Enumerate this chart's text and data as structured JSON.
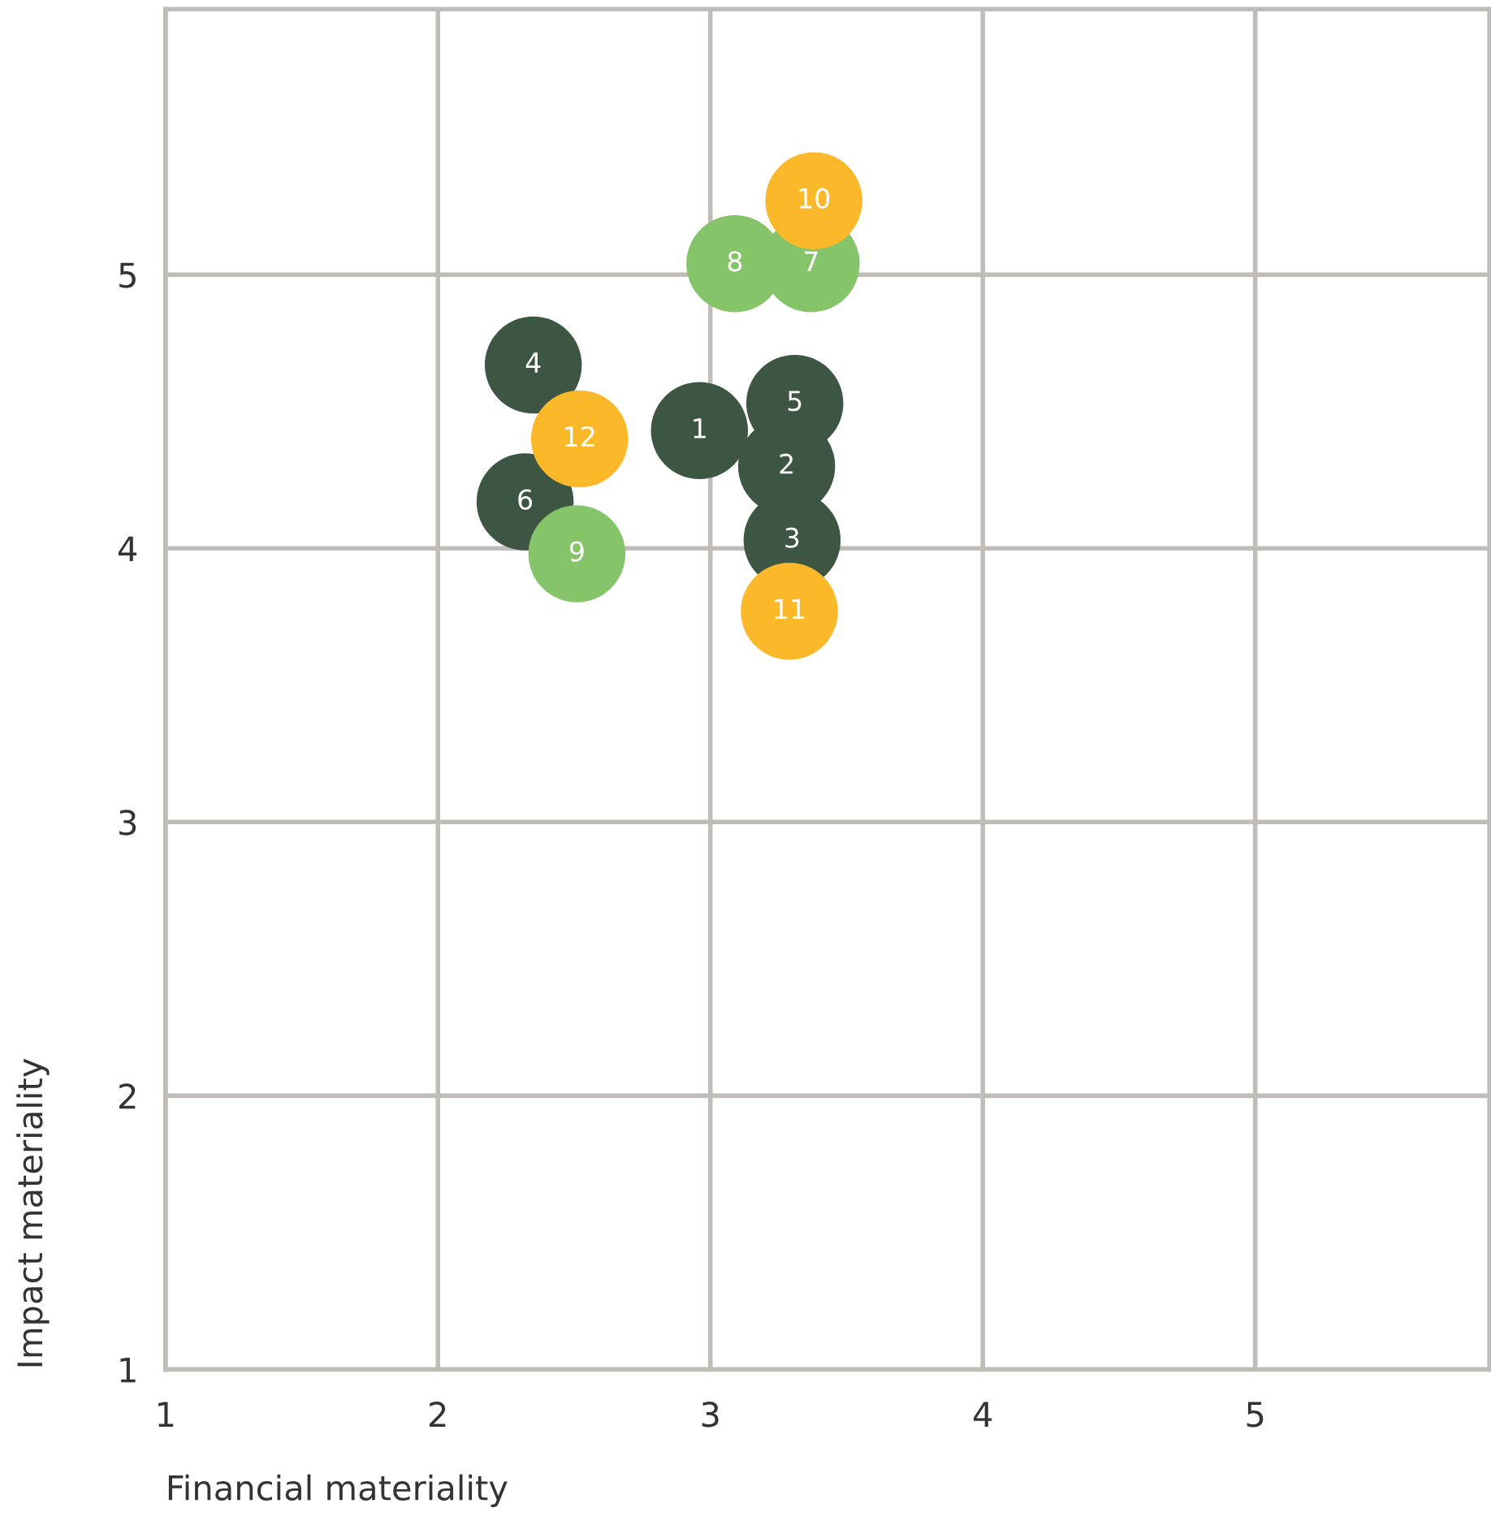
{
  "chart_data": {
    "type": "scatter",
    "xlabel": "Financial materiality",
    "ylabel": "Impact materiality",
    "xlim": [
      1,
      5.86
    ],
    "ylim": [
      1,
      5.97
    ],
    "xticks": [
      1,
      2,
      3,
      4,
      5
    ],
    "yticks": [
      1,
      2,
      3,
      4,
      5
    ],
    "grid": true,
    "marker": "circle",
    "legend": false,
    "series": [
      {
        "color": "#3d5643",
        "x": [
          2.96,
          3.28,
          3.3,
          2.35,
          3.31,
          2.32
        ],
        "values": [
          4.43,
          4.3,
          4.03,
          4.67,
          4.53,
          4.17
        ]
      },
      {
        "color": "#86c46a",
        "x": [
          3.37,
          3.09,
          2.51
        ],
        "values": [
          5.04,
          5.04,
          3.98
        ]
      },
      {
        "color": "#fbb829",
        "x": [
          3.38,
          3.29,
          2.52
        ],
        "values": [
          5.27,
          3.77,
          4.4
        ]
      }
    ],
    "annotations": [
      {
        "text": "1",
        "x": 2.96,
        "y": 4.43
      },
      {
        "text": "2",
        "x": 3.28,
        "y": 4.3
      },
      {
        "text": "3",
        "x": 3.3,
        "y": 4.03
      },
      {
        "text": "4",
        "x": 2.35,
        "y": 4.67
      },
      {
        "text": "5",
        "x": 3.31,
        "y": 4.53
      },
      {
        "text": "6",
        "x": 2.32,
        "y": 4.17
      },
      {
        "text": "7",
        "x": 3.37,
        "y": 5.04
      },
      {
        "text": "8",
        "x": 3.09,
        "y": 5.04
      },
      {
        "text": "9",
        "x": 2.51,
        "y": 3.98
      },
      {
        "text": "10",
        "x": 3.38,
        "y": 5.27
      },
      {
        "text": "11",
        "x": 3.29,
        "y": 3.77
      },
      {
        "text": "12",
        "x": 2.52,
        "y": 4.4
      }
    ]
  }
}
